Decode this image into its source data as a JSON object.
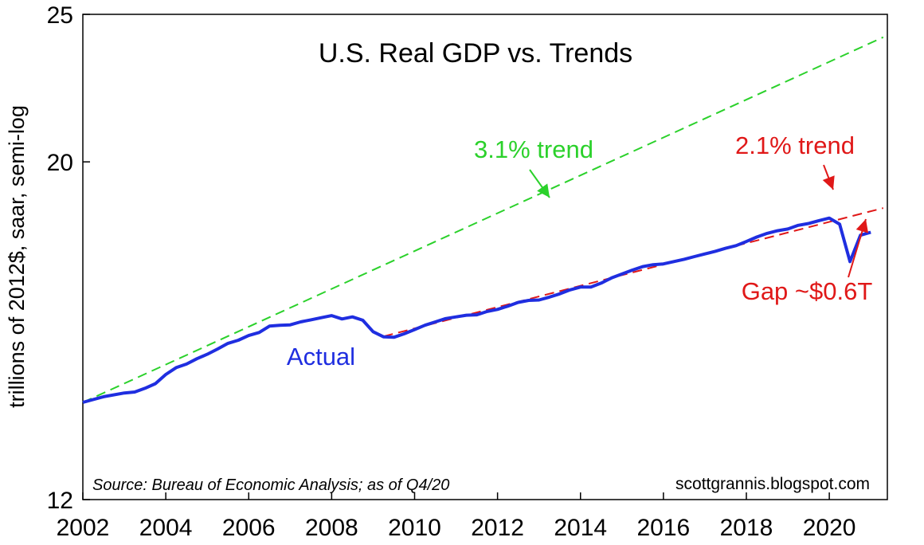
{
  "chart_data": {
    "type": "line",
    "title": "U.S. Real GDP vs. Trends",
    "xlabel": "",
    "ylabel": "trillions of 2012$, saar, semi-log",
    "yscale": "log",
    "ylim": [
      12,
      25
    ],
    "xlim": [
      2002,
      2021.4
    ],
    "x_ticks": [
      2002,
      2004,
      2006,
      2008,
      2010,
      2012,
      2014,
      2016,
      2018,
      2020
    ],
    "y_ticks": [
      12,
      20,
      25
    ],
    "series": [
      {
        "name": "Actual",
        "color": "#1f2ee0",
        "style": "solid",
        "points": [
          [
            2002.0,
            13.9
          ],
          [
            2002.5,
            14.02
          ],
          [
            2003.0,
            14.1
          ],
          [
            2003.25,
            14.12
          ],
          [
            2003.5,
            14.2
          ],
          [
            2003.75,
            14.3
          ],
          [
            2004.0,
            14.5
          ],
          [
            2004.25,
            14.65
          ],
          [
            2004.5,
            14.73
          ],
          [
            2004.75,
            14.85
          ],
          [
            2005.0,
            14.95
          ],
          [
            2005.25,
            15.07
          ],
          [
            2005.5,
            15.2
          ],
          [
            2005.75,
            15.27
          ],
          [
            2006.0,
            15.38
          ],
          [
            2006.25,
            15.45
          ],
          [
            2006.5,
            15.6
          ],
          [
            2006.75,
            15.62
          ],
          [
            2007.0,
            15.63
          ],
          [
            2007.25,
            15.7
          ],
          [
            2007.5,
            15.75
          ],
          [
            2007.75,
            15.8
          ],
          [
            2008.0,
            15.85
          ],
          [
            2008.25,
            15.77
          ],
          [
            2008.5,
            15.82
          ],
          [
            2008.75,
            15.74
          ],
          [
            2009.0,
            15.47
          ],
          [
            2009.25,
            15.35
          ],
          [
            2009.5,
            15.34
          ],
          [
            2009.75,
            15.42
          ],
          [
            2010.0,
            15.52
          ],
          [
            2010.25,
            15.62
          ],
          [
            2010.5,
            15.7
          ],
          [
            2010.75,
            15.78
          ],
          [
            2011.0,
            15.82
          ],
          [
            2011.25,
            15.86
          ],
          [
            2011.5,
            15.87
          ],
          [
            2011.75,
            15.95
          ],
          [
            2012.0,
            16.0
          ],
          [
            2012.25,
            16.08
          ],
          [
            2012.5,
            16.17
          ],
          [
            2012.75,
            16.22
          ],
          [
            2013.0,
            16.23
          ],
          [
            2013.25,
            16.3
          ],
          [
            2013.5,
            16.38
          ],
          [
            2013.75,
            16.48
          ],
          [
            2014.0,
            16.55
          ],
          [
            2014.25,
            16.55
          ],
          [
            2014.5,
            16.65
          ],
          [
            2014.75,
            16.78
          ],
          [
            2015.0,
            16.88
          ],
          [
            2015.25,
            16.98
          ],
          [
            2015.5,
            17.07
          ],
          [
            2015.75,
            17.12
          ],
          [
            2016.0,
            17.14
          ],
          [
            2016.25,
            17.2
          ],
          [
            2016.5,
            17.26
          ],
          [
            2016.75,
            17.33
          ],
          [
            2017.0,
            17.4
          ],
          [
            2017.25,
            17.47
          ],
          [
            2017.5,
            17.55
          ],
          [
            2017.75,
            17.62
          ],
          [
            2018.0,
            17.73
          ],
          [
            2018.25,
            17.85
          ],
          [
            2018.5,
            17.95
          ],
          [
            2018.75,
            18.02
          ],
          [
            2019.0,
            18.07
          ],
          [
            2019.25,
            18.17
          ],
          [
            2019.5,
            18.22
          ],
          [
            2019.75,
            18.3
          ],
          [
            2020.0,
            18.37
          ],
          [
            2020.25,
            18.2
          ],
          [
            2020.5,
            17.2
          ],
          [
            2020.75,
            17.9
          ],
          [
            2021.0,
            17.98
          ]
        ]
      },
      {
        "name": "3.1% trend",
        "color": "#2bd12b",
        "style": "dashed",
        "start": [
          2002.0,
          13.9
        ],
        "end": [
          2021.3,
          24.15
        ]
      },
      {
        "name": "2.1% trend",
        "color": "#e01818",
        "style": "dashed",
        "start": [
          2009.25,
          15.36
        ],
        "end": [
          2021.3,
          18.65
        ]
      }
    ],
    "annotations": [
      {
        "text": "3.1% trend",
        "color": "#2bd12b"
      },
      {
        "text": "2.1% trend",
        "color": "#e01818"
      },
      {
        "text": "Actual",
        "color": "#1f2ee0"
      },
      {
        "text": "Gap ~$0.6T",
        "color": "#e01818"
      }
    ],
    "source": "Source:  Bureau of Economic Analysis; as of Q4/20",
    "credit": "scottgrannis.blogspot.com",
    "grid": false
  }
}
